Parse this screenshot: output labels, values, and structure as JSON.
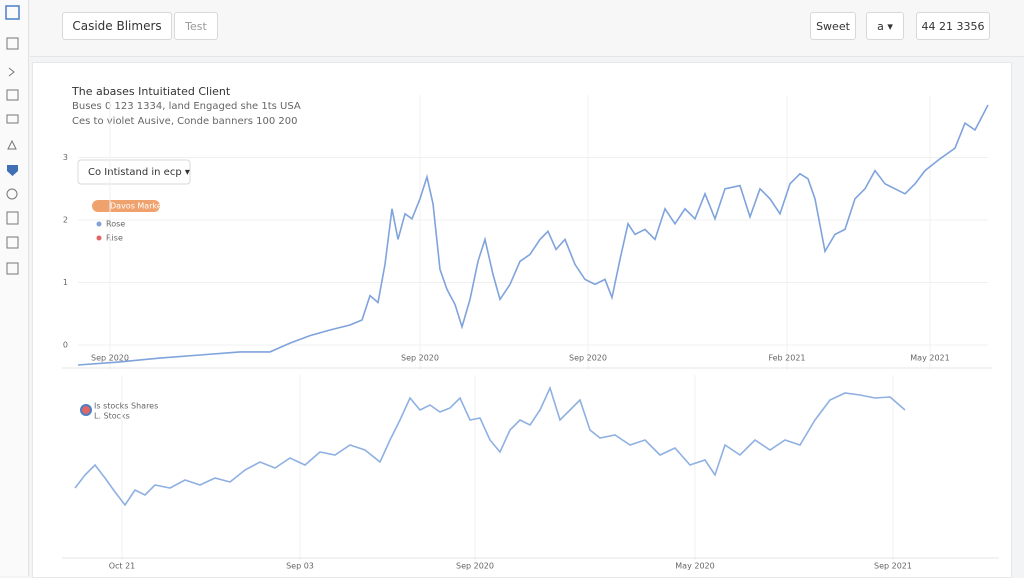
{
  "header": {
    "title": "Caside Blimers",
    "tab": "Test",
    "button": "Sweet",
    "menu": "a ▾",
    "status": "44 21 3356"
  },
  "controls": {
    "dropdown": "Co Intistand in ecp ▾",
    "chip": "Davos Market",
    "key_2": "Rise",
    "legend_2b": "L. Stocks"
  },
  "chart_data": [
    {
      "type": "line",
      "title": "The abases Intuitiated Client",
      "subtitle": [
        "Buses 0 123 1334, land Engaged she 1ts USA",
        "Ces to violet Ausive, Conde banners 100 200"
      ],
      "x": [
        0,
        42,
        82,
        122,
        162,
        192,
        212,
        232,
        252,
        272,
        284,
        292,
        300,
        307,
        314,
        320,
        327,
        334,
        342,
        349,
        355,
        362,
        369,
        377,
        384,
        392,
        400,
        407,
        415,
        422,
        432,
        442,
        452,
        462,
        470,
        478,
        487,
        497,
        507,
        517,
        527,
        534,
        542,
        550,
        557,
        567,
        577,
        587,
        597,
        607,
        617,
        627,
        637,
        647,
        662,
        672,
        682,
        692,
        702,
        712,
        722,
        730,
        737,
        747,
        757,
        767,
        777,
        787,
        797,
        807,
        817,
        827,
        837,
        847,
        862,
        877,
        887,
        897,
        910
      ],
      "series": [
        {
          "name": "Rose",
          "color": "#7fa3dc",
          "values": [
            -0.32,
            -0.27,
            -0.21,
            -0.16,
            -0.11,
            -0.11,
            0.03,
            0.15,
            0.24,
            0.32,
            0.4,
            0.79,
            0.68,
            1.29,
            2.18,
            1.69,
            2.1,
            2.02,
            2.34,
            2.69,
            2.26,
            1.21,
            0.89,
            0.65,
            0.29,
            0.73,
            1.34,
            1.69,
            1.13,
            0.73,
            0.97,
            1.34,
            1.45,
            1.69,
            1.82,
            1.53,
            1.69,
            1.29,
            1.05,
            0.97,
            1.05,
            0.76,
            1.37,
            1.94,
            1.77,
            1.85,
            1.69,
            2.18,
            1.94,
            2.18,
            2.02,
            2.42,
            2.02,
            2.5,
            2.55,
            2.05,
            2.5,
            2.34,
            2.1,
            2.58,
            2.74,
            2.66,
            2.34,
            1.5,
            1.77,
            1.85,
            2.34,
            2.5,
            2.79,
            2.58,
            2.5,
            2.42,
            2.58,
            2.79,
            2.98,
            3.15,
            3.55,
            3.44,
            3.84
          ]
        }
      ],
      "xlim": [
        0,
        910
      ],
      "ylim": [
        -0.4,
        4
      ],
      "yticks": [
        0,
        1,
        2,
        3
      ],
      "xticks": [
        {
          "value": 32,
          "label": "Sep 2020"
        },
        {
          "value": 342,
          "label": "Sep 2020"
        },
        {
          "value": 510,
          "label": "Sep 2020"
        },
        {
          "value": 709,
          "label": "Feb 2021"
        },
        {
          "value": 852,
          "label": "May 2021"
        }
      ],
      "grid": true
    },
    {
      "type": "line",
      "x": [
        0,
        10,
        20,
        30,
        40,
        50,
        60,
        70,
        80,
        95,
        110,
        125,
        140,
        155,
        170,
        185,
        200,
        215,
        230,
        245,
        260,
        275,
        290,
        305,
        315,
        325,
        335,
        345,
        355,
        365,
        375,
        385,
        395,
        405,
        415,
        425,
        435,
        445,
        455,
        465,
        475,
        485,
        495,
        505,
        515,
        525,
        540,
        555,
        570,
        585,
        600,
        615,
        630,
        640,
        650,
        665,
        680,
        695,
        710,
        725,
        740,
        755,
        770,
        785,
        800,
        815,
        830
      ],
      "series": [
        {
          "name": "Is stocks Shares",
          "color": "#8fb0e2",
          "values": [
            72,
            85,
            95,
            82,
            68,
            55,
            70,
            65,
            75,
            72,
            80,
            75,
            82,
            78,
            90,
            98,
            92,
            102,
            95,
            108,
            105,
            115,
            110,
            98,
            120,
            140,
            162,
            150,
            155,
            148,
            152,
            162,
            140,
            142,
            120,
            108,
            130,
            140,
            135,
            150,
            172,
            140,
            150,
            160,
            130,
            122,
            125,
            115,
            120,
            105,
            112,
            95,
            100,
            85,
            115,
            105,
            120,
            110,
            120,
            115,
            140,
            160,
            167,
            165,
            162,
            163,
            150
          ]
        }
      ],
      "xlim": [
        0,
        920
      ],
      "ylim": [
        0,
        185
      ],
      "xticks": [
        {
          "value": 47,
          "label": "Oct 21"
        },
        {
          "value": 225,
          "label": "Sep 03"
        },
        {
          "value": 400,
          "label": "Sep 2020"
        },
        {
          "value": 620,
          "label": "May 2020"
        },
        {
          "value": 818,
          "label": "Sep 2021"
        }
      ],
      "grid": true
    }
  ]
}
